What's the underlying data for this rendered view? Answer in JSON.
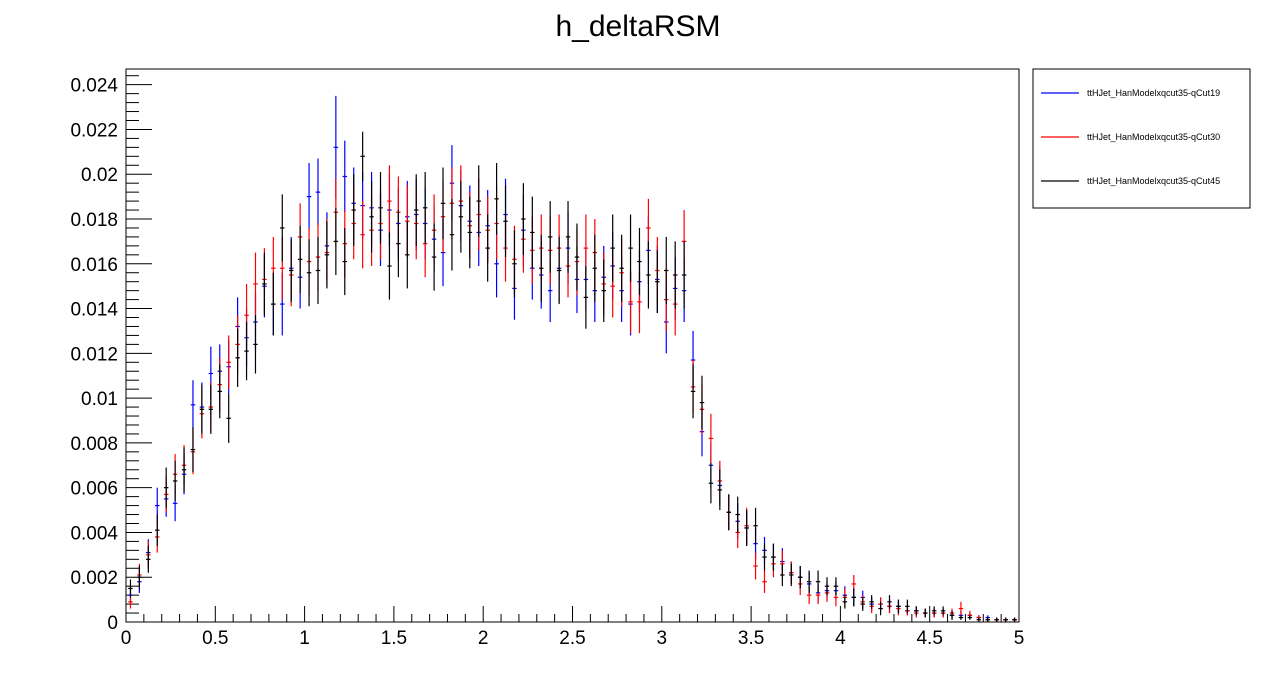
{
  "chart_data": {
    "type": "scatter",
    "title": "h_deltaRSM",
    "xlabel": "",
    "ylabel": "",
    "xlim": [
      0,
      5
    ],
    "ylim": [
      0,
      0.0247
    ],
    "grid": false,
    "legend_position": "outside-top-right",
    "x_ticks": [
      "0",
      "0.5",
      "1",
      "1.5",
      "2",
      "2.5",
      "3",
      "3.5",
      "4",
      "4.5",
      "5"
    ],
    "y_ticks": [
      "0",
      "0.002",
      "0.004",
      "0.006",
      "0.008",
      "0.01",
      "0.012",
      "0.014",
      "0.016",
      "0.018",
      "0.02",
      "0.022",
      "0.024"
    ],
    "bin_width": 0.05,
    "x": [
      0.025,
      0.075,
      0.125,
      0.175,
      0.225,
      0.275,
      0.325,
      0.375,
      0.425,
      0.475,
      0.525,
      0.575,
      0.625,
      0.675,
      0.725,
      0.775,
      0.825,
      0.875,
      0.925,
      0.975,
      1.025,
      1.075,
      1.125,
      1.175,
      1.225,
      1.275,
      1.325,
      1.375,
      1.425,
      1.475,
      1.525,
      1.575,
      1.625,
      1.675,
      1.725,
      1.775,
      1.825,
      1.875,
      1.925,
      1.975,
      2.025,
      2.075,
      2.125,
      2.175,
      2.225,
      2.275,
      2.325,
      2.375,
      2.425,
      2.475,
      2.525,
      2.575,
      2.625,
      2.675,
      2.725,
      2.775,
      2.825,
      2.875,
      2.925,
      2.975,
      3.025,
      3.075,
      3.125,
      3.175,
      3.225,
      3.275,
      3.325,
      3.375,
      3.425,
      3.475,
      3.525,
      3.575,
      3.625,
      3.675,
      3.725,
      3.775,
      3.825,
      3.875,
      3.925,
      3.975,
      4.025,
      4.075,
      4.125,
      4.175,
      4.225,
      4.275,
      4.325,
      4.375,
      4.425,
      4.475,
      4.525,
      4.575,
      4.625,
      4.675,
      4.725,
      4.775,
      4.825,
      4.875,
      4.925,
      4.975
    ],
    "series": [
      {
        "name": "ttHJet_HanModelxqcut35-qCut19",
        "color": "#0000ff",
        "values": [
          0.0012,
          0.0018,
          0.0031,
          0.0052,
          0.0055,
          0.0053,
          0.0066,
          0.0097,
          0.0096,
          0.0111,
          0.0112,
          0.0114,
          0.0132,
          0.0127,
          0.0134,
          0.015,
          0.0142,
          0.0142,
          0.0158,
          0.0154,
          0.019,
          0.0192,
          0.0168,
          0.0212,
          0.0199,
          0.0187,
          0.0186,
          0.0185,
          0.0175,
          0.0184,
          0.0178,
          0.0181,
          0.0182,
          0.0178,
          0.0171,
          0.0165,
          0.0196,
          0.0186,
          0.0179,
          0.0174,
          0.0177,
          0.016,
          0.0182,
          0.0149,
          0.0175,
          0.0158,
          0.0155,
          0.0148,
          0.0158,
          0.0167,
          0.0153,
          0.0153,
          0.0148,
          0.0154,
          0.0159,
          0.0148,
          0.0142,
          0.0152,
          0.0166,
          0.0153,
          0.0134,
          0.0149,
          0.0148,
          0.0117,
          0.0085,
          0.007,
          0.0061,
          0.0049,
          0.0045,
          0.0042,
          0.0035,
          0.0032,
          0.0029,
          0.0027,
          0.0022,
          0.002,
          0.0017,
          0.0013,
          0.0014,
          0.0014,
          0.0012,
          0.0011,
          0.0011,
          0.0008,
          0.0008,
          0.0007,
          0.0007,
          0.0005,
          0.0005,
          0.0004,
          0.0004,
          0.0004,
          0.0003,
          0.0003,
          0.0003,
          0.0002,
          0.0002,
          0.0001,
          0.0001,
          0.0001
        ],
        "errors": [
          0.0004,
          0.0005,
          0.0006,
          0.0008,
          0.0008,
          0.0008,
          0.0009,
          0.0011,
          0.0011,
          0.0012,
          0.0012,
          0.0012,
          0.0013,
          0.0013,
          0.0013,
          0.0014,
          0.0014,
          0.0014,
          0.0014,
          0.0014,
          0.0015,
          0.0015,
          0.0015,
          0.0023,
          0.0016,
          0.0016,
          0.0015,
          0.0016,
          0.0016,
          0.0016,
          0.0016,
          0.0016,
          0.0016,
          0.0016,
          0.0015,
          0.0015,
          0.0017,
          0.0016,
          0.0016,
          0.0015,
          0.0016,
          0.0015,
          0.0016,
          0.0014,
          0.0016,
          0.0014,
          0.0015,
          0.0014,
          0.0015,
          0.0016,
          0.0015,
          0.0014,
          0.0014,
          0.0014,
          0.0015,
          0.0014,
          0.0014,
          0.0014,
          0.0015,
          0.0015,
          0.0014,
          0.0014,
          0.0014,
          0.0013,
          0.0011,
          0.001,
          0.0009,
          0.0008,
          0.0008,
          0.0008,
          0.0007,
          0.0006,
          0.0006,
          0.0006,
          0.0005,
          0.0005,
          0.0005,
          0.0004,
          0.0004,
          0.0004,
          0.0004,
          0.0004,
          0.0003,
          0.0003,
          0.0003,
          0.0003,
          0.0003,
          0.0002,
          0.0002,
          0.0002,
          0.0002,
          0.0002,
          0.0002,
          0.0002,
          0.0001,
          0.0001,
          0.0001,
          0.0001,
          0.0001,
          0.0001
        ]
      },
      {
        "name": "ttHJet_HanModelxqcut35-qCut30",
        "color": "#ff0000",
        "values": [
          0.0009,
          0.0021,
          0.003,
          0.0038,
          0.0057,
          0.0066,
          0.007,
          0.0076,
          0.0093,
          0.0096,
          0.0106,
          0.0116,
          0.0124,
          0.0137,
          0.0151,
          0.0153,
          0.0158,
          0.0158,
          0.0155,
          0.0172,
          0.0161,
          0.0163,
          0.0165,
          0.0183,
          0.0169,
          0.0178,
          0.0173,
          0.0175,
          0.0178,
          0.0188,
          0.0183,
          0.0179,
          0.0178,
          0.0169,
          0.0175,
          0.0181,
          0.0187,
          0.0188,
          0.0177,
          0.0182,
          0.0175,
          0.0178,
          0.0167,
          0.0162,
          0.0171,
          0.0166,
          0.0167,
          0.0166,
          0.0167,
          0.0159,
          0.0161,
          0.0167,
          0.0165,
          0.0151,
          0.015,
          0.0156,
          0.0143,
          0.0143,
          0.0176,
          0.0157,
          0.0144,
          0.0142,
          0.017,
          0.0105,
          0.0095,
          0.0082,
          0.0063,
          0.0049,
          0.004,
          0.0043,
          0.0025,
          0.0018,
          0.0026,
          0.0026,
          0.0022,
          0.0017,
          0.0012,
          0.0012,
          0.0013,
          0.0011,
          0.0011,
          0.0017,
          0.0009,
          0.0007,
          0.0008,
          0.0007,
          0.0006,
          0.0005,
          0.0004,
          0.0004,
          0.0004,
          0.0004,
          0.0004,
          0.0006,
          0.0003,
          0.0002,
          0.0001,
          0.0001,
          0.0001,
          0.0001
        ],
        "errors": [
          0.0003,
          0.0005,
          0.0006,
          0.0007,
          0.0008,
          0.0009,
          0.0009,
          0.001,
          0.0011,
          0.0011,
          0.0012,
          0.0012,
          0.0013,
          0.0014,
          0.0014,
          0.0014,
          0.0014,
          0.0014,
          0.0014,
          0.0015,
          0.0015,
          0.0015,
          0.0015,
          0.0015,
          0.0015,
          0.0016,
          0.0015,
          0.0016,
          0.0016,
          0.0016,
          0.0016,
          0.0016,
          0.0016,
          0.0015,
          0.0016,
          0.0016,
          0.0016,
          0.0016,
          0.0015,
          0.0016,
          0.0015,
          0.0016,
          0.0015,
          0.0015,
          0.0015,
          0.0015,
          0.0015,
          0.0015,
          0.0015,
          0.0014,
          0.0015,
          0.0015,
          0.0015,
          0.0014,
          0.0014,
          0.0015,
          0.0014,
          0.0014,
          0.0013,
          0.0015,
          0.0014,
          0.0014,
          0.0014,
          0.0012,
          0.0011,
          0.0011,
          0.0009,
          0.0008,
          0.0007,
          0.0008,
          0.0006,
          0.0005,
          0.0006,
          0.0006,
          0.0005,
          0.0005,
          0.0004,
          0.0004,
          0.0004,
          0.0004,
          0.0004,
          0.0004,
          0.0003,
          0.0003,
          0.0003,
          0.0003,
          0.0003,
          0.0002,
          0.0002,
          0.0002,
          0.0002,
          0.0002,
          0.0002,
          0.0003,
          0.0002,
          0.0001,
          0.0001,
          0.0001,
          0.0001,
          0.0001
        ]
      },
      {
        "name": "ttHJet_HanModelxqcut35-qCut45",
        "color": "#000000",
        "values": [
          0.0015,
          0.002,
          0.0028,
          0.0041,
          0.006,
          0.0063,
          0.0068,
          0.0077,
          0.0095,
          0.0095,
          0.0103,
          0.0091,
          0.0118,
          0.0121,
          0.0124,
          0.0151,
          0.0142,
          0.0176,
          0.0157,
          0.0162,
          0.0156,
          0.0157,
          0.0164,
          0.017,
          0.0161,
          0.0184,
          0.0208,
          0.0181,
          0.0185,
          0.0159,
          0.0169,
          0.0164,
          0.0184,
          0.0185,
          0.0163,
          0.0187,
          0.0173,
          0.0181,
          0.0174,
          0.0188,
          0.0167,
          0.0189,
          0.0179,
          0.016,
          0.018,
          0.0174,
          0.0158,
          0.0172,
          0.0157,
          0.0172,
          0.0163,
          0.0145,
          0.0158,
          0.0148,
          0.0167,
          0.0158,
          0.0167,
          0.0161,
          0.0155,
          0.0152,
          0.0157,
          0.0155,
          0.0155,
          0.0103,
          0.0098,
          0.0062,
          0.0059,
          0.0049,
          0.0048,
          0.0042,
          0.0043,
          0.0029,
          0.0029,
          0.0021,
          0.0021,
          0.002,
          0.0018,
          0.0018,
          0.0016,
          0.0016,
          0.0009,
          0.0011,
          0.0008,
          0.0009,
          0.0006,
          0.0009,
          0.0007,
          0.0007,
          0.0005,
          0.0004,
          0.0005,
          0.0005,
          0.0003,
          0.0002,
          0.0002,
          0.0001,
          0.0001,
          0.0001,
          0.0001,
          0.0001
        ],
        "errors": [
          0.0004,
          0.0005,
          0.0006,
          0.0007,
          0.0009,
          0.0009,
          0.001,
          0.001,
          0.0011,
          0.0011,
          0.0012,
          0.0011,
          0.0013,
          0.0013,
          0.0013,
          0.0014,
          0.0014,
          0.0015,
          0.0014,
          0.0015,
          0.0015,
          0.0015,
          0.0015,
          0.0015,
          0.0015,
          0.0016,
          0.0011,
          0.0016,
          0.0016,
          0.0015,
          0.0015,
          0.0015,
          0.0016,
          0.0016,
          0.0015,
          0.0016,
          0.0016,
          0.0016,
          0.0016,
          0.0016,
          0.0015,
          0.0016,
          0.0016,
          0.0015,
          0.0016,
          0.0016,
          0.0015,
          0.0016,
          0.0015,
          0.0016,
          0.0015,
          0.0014,
          0.0015,
          0.0014,
          0.0015,
          0.0015,
          0.0015,
          0.0015,
          0.0015,
          0.0014,
          0.0015,
          0.0015,
          0.0015,
          0.0012,
          0.0012,
          0.0009,
          0.0009,
          0.0008,
          0.0008,
          0.0008,
          0.0008,
          0.0006,
          0.0006,
          0.0005,
          0.0005,
          0.0005,
          0.0005,
          0.0005,
          0.0004,
          0.0004,
          0.0003,
          0.0004,
          0.0003,
          0.0003,
          0.0003,
          0.0003,
          0.0003,
          0.0003,
          0.0002,
          0.0002,
          0.0002,
          0.0002,
          0.0002,
          0.0001,
          0.0001,
          0.0001,
          0.0001,
          0.0001,
          0.0001,
          0.0001
        ]
      }
    ]
  }
}
